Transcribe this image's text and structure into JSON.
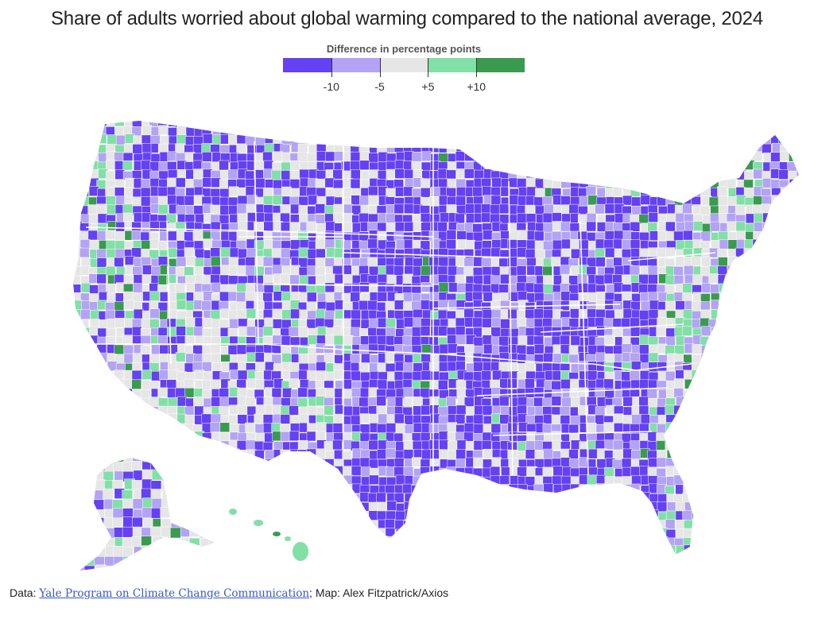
{
  "title": "Share of adults worried about global warming compared to the national average, 2024",
  "legend": {
    "title": "Difference in percentage points",
    "bins": [
      {
        "label": "below -10",
        "color": "#6441f2"
      },
      {
        "label": "-10 to -5",
        "color": "#b3a3f5"
      },
      {
        "label": "-5 to +5",
        "color": "#e6e6e6"
      },
      {
        "label": "+5 to +10",
        "color": "#82dfa6"
      },
      {
        "label": "above +10",
        "color": "#3a9a4f"
      }
    ],
    "ticks": [
      "-10",
      "-5",
      "+5",
      "+10"
    ]
  },
  "source": {
    "prefix": "Data: ",
    "link_text": "Yale Program on Climate Change Communication",
    "suffix": "; Map: Alex Fitzpatrick/Axios"
  }
}
